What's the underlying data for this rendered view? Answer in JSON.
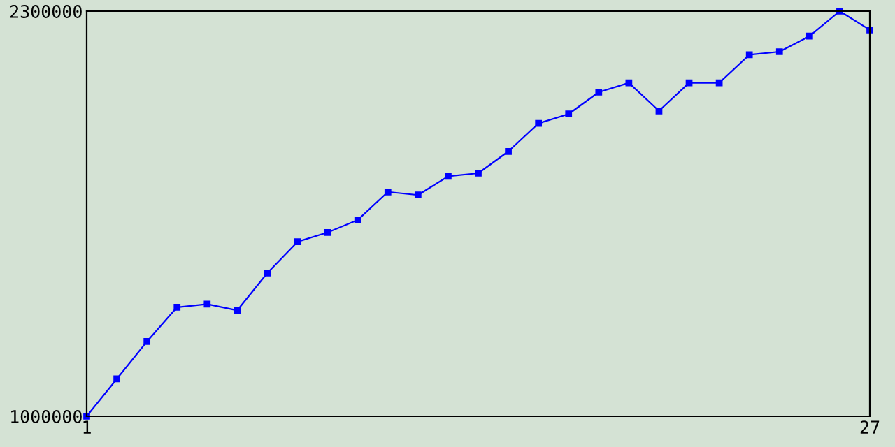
{
  "chart_data": {
    "type": "line",
    "x": [
      1,
      2,
      3,
      4,
      5,
      6,
      7,
      8,
      9,
      10,
      11,
      12,
      13,
      14,
      15,
      16,
      17,
      18,
      19,
      20,
      21,
      22,
      23,
      24,
      25,
      26,
      27
    ],
    "series": [
      {
        "color": "#0000ff",
        "values": [
          1000000,
          1120000,
          1240000,
          1350000,
          1360000,
          1340000,
          1460000,
          1560000,
          1590000,
          1630000,
          1720000,
          1710000,
          1770000,
          1780000,
          1850000,
          1940000,
          1970000,
          2040000,
          2070000,
          1980000,
          2070000,
          2070000,
          2160000,
          2170000,
          2220000,
          2300000,
          2240000
        ]
      }
    ],
    "xlim": [
      1,
      27
    ],
    "xticks": [
      1,
      27
    ],
    "ylim": [
      1000000,
      2300000
    ],
    "yticks": [
      1000000,
      2300000
    ],
    "grid": false,
    "legend": false,
    "marker": "square",
    "line_style": "solid"
  }
}
